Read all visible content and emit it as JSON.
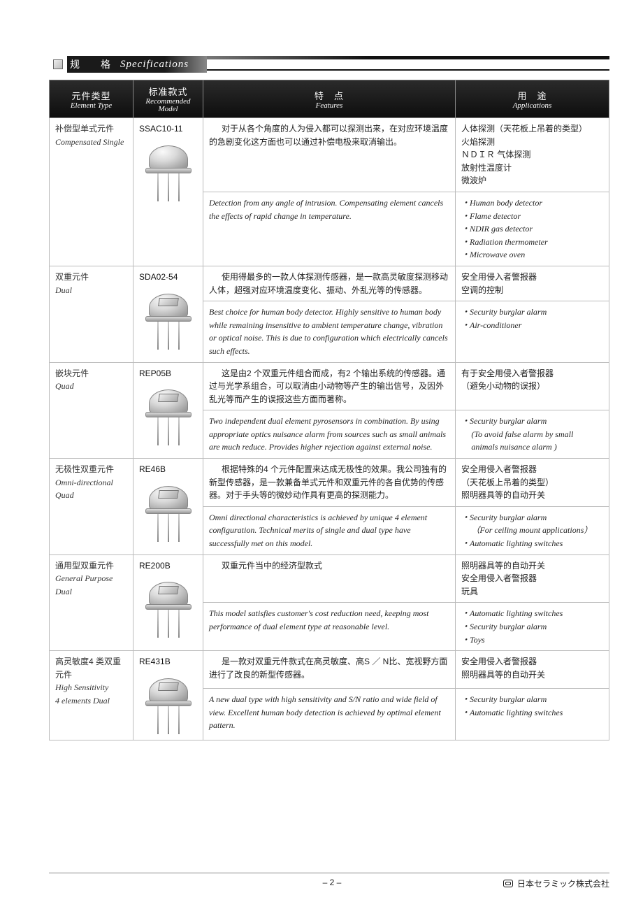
{
  "section": {
    "cn": "规　格",
    "en": "Specifications"
  },
  "headers": {
    "element_type": {
      "cn": "元件类型",
      "en": "Element Type"
    },
    "model": {
      "cn": "标准款式",
      "en": "Recommended\nModel"
    },
    "features": {
      "cn": "特　点",
      "en": "Features"
    },
    "applications": {
      "cn": "用　途",
      "en": "Applications"
    }
  },
  "rows": [
    {
      "type_cn": "补偿型单式元件",
      "type_en": "Compensated Single",
      "model": "SSAC10-11",
      "has_window": false,
      "feat_cn": "对于从各个角度的人为侵入都可以探测出来，在对应环境温度的急剧变化这方面也可以通过补偿电极来取消输出。",
      "feat_en": "Detection from any angle of intrusion. Compensating element cancels the effects of rapid change in temperature.",
      "app_cn": "人体探测（天花板上吊着的类型）\n火焰探测\nＮＤＩＲ 气体探测\n放射性温度计\n微波炉",
      "app_en": [
        "Human body detector",
        "Flame detector",
        "NDIR gas detector",
        "Radiation thermometer",
        "Microwave oven"
      ]
    },
    {
      "type_cn": "双重元件",
      "type_en": "Dual",
      "model": "SDA02-54",
      "has_window": true,
      "feat_cn": "使用得最多的一款人体探测传感器，是一款高灵敏度探测移动人体，超强对应环境温度变化、振动、外乱光等的传感器。",
      "feat_en": "Best choice for human body detector. Highly sensitive to human body while remaining insensitive to ambient temperature change, vibration or optical noise. This is due to configuration which electrically cancels such effects.",
      "app_cn": "安全用侵入者警报器\n空调的控制",
      "app_en": [
        "Security burglar alarm",
        "Air-conditioner"
      ]
    },
    {
      "type_cn": "嵌块元件",
      "type_en": "Quad",
      "model": "REP05B",
      "has_window": true,
      "feat_cn": "这是由2 个双重元件组合而成，有2 个输出系统的传感器。通过与光学系组合，可以取消由小动物等产生的输出信号，及因外乱光等而产生的误报这些方面而著称。",
      "feat_en": "Two independent dual element pyrosensors in combination. By using appropriate optics nuisance alarm from sources such as small animals are much reduce. Provides higher rejection against external noise.",
      "app_cn": "有于安全用侵入者警报器\n（避免小动物的误报）",
      "app_en": [
        "Security burglar alarm"
      ],
      "app_en_sub": [
        "(To avoid false alarm by small",
        "animals nuisance alarm )"
      ]
    },
    {
      "type_cn": "无极性双重元件",
      "type_en": "Omni-directional Quad",
      "model": "RE46B",
      "has_window": true,
      "feat_cn": "根据特殊的4 个元件配置来达成无极性的效果。我公司独有的新型传感器，是一款兼备单式元件和双重元件的各自优势的传感器。对于手头等的微妙动作具有更高的探测能力。",
      "feat_en": "Omni directional characteristics is achieved by unique 4 element configuration. Technical merits of single and dual type have successfully met on this model.",
      "app_cn": "安全用侵入者警报器\n（天花板上吊着的类型）\n照明器具等的自动开关",
      "app_en": [
        "Security burglar alarm"
      ],
      "app_en_sub": [
        "（For ceiling mount applications）"
      ],
      "app_en2": [
        "Automatic lighting switches"
      ]
    },
    {
      "type_cn": "通用型双重元件",
      "type_en": "General Purpose Dual",
      "model": "RE200B",
      "has_window": true,
      "feat_cn": "双重元件当中的经济型款式",
      "feat_en": "This model satisfies customer's cost reduction need, keeping most performance of dual element type at reasonable level.",
      "app_cn": "照明器具等的自动开关\n安全用侵入者警报器\n玩具",
      "app_en": [
        "Automatic lighting switches",
        "Security burglar alarm",
        "Toys"
      ]
    },
    {
      "type_cn": "高灵敏度4 类双重元件",
      "type_en": "High Sensitivity\n4 elements Dual",
      "model": "RE431B",
      "has_window": true,
      "feat_cn": "是一款对双重元件款式在高灵敏度、高S ／ N比、宽视野方面进行了改良的新型传感器。",
      "feat_en": "A new dual type with high sensitivity and S/N ratio and wide field of view. Excellent human body detection is achieved by optimal element pattern.",
      "app_cn": "安全用侵入者警报器\n照明器具等的自动开关",
      "app_en": [
        "Security burglar alarm",
        "Automatic lighting switches"
      ]
    }
  ],
  "footer": {
    "page": "– 2 –",
    "company": "日本セラミック株式会社"
  }
}
